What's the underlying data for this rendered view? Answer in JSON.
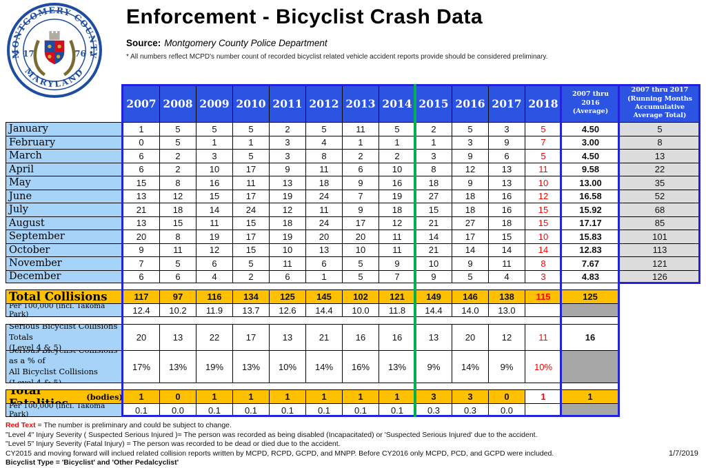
{
  "header": {
    "title": "Enforcement - Bicyclist Crash Data",
    "source_label": "Source:",
    "source_value": "Montgomery County Police Department",
    "note": "* All numbers reflect MCPD's number count of recorded bicyclist related vehicle accident reports provide should be considered preliminary.",
    "seal_top": "MONTGOMERY COUNTY",
    "seal_bottom": "MARYLAND",
    "seal_year_left": "17",
    "seal_year_right": "76"
  },
  "colors": {
    "header_blue": "#2B54E2",
    "border_blue": "#2222DD",
    "label_light_blue": "#A6D3F7",
    "gold": "#FFC000",
    "blocked_gray": "#A6A6A6",
    "running_gray": "#DCDCDC",
    "divider_green": "#00B050",
    "preliminary_red": "#FF0000"
  },
  "table": {
    "year_columns": [
      "2007",
      "2008",
      "2009",
      "2010",
      "2011",
      "2012",
      "2013",
      "2014",
      "2015",
      "2016",
      "2017",
      "2018"
    ],
    "avg_column_label": "2007 thru 2016 (Average)",
    "running_column_label": "2007 thru 2017 (Running Months Accumulative Average Total)",
    "months": [
      {
        "label": "January",
        "values": [
          "1",
          "5",
          "5",
          "5",
          "2",
          "5",
          "11",
          "5",
          "2",
          "5",
          "3",
          "5"
        ],
        "avg": "4.50",
        "running": "5"
      },
      {
        "label": "February",
        "values": [
          "0",
          "5",
          "1",
          "1",
          "3",
          "4",
          "1",
          "1",
          "1",
          "3",
          "9",
          "7"
        ],
        "avg": "3.00",
        "running": "8"
      },
      {
        "label": "March",
        "values": [
          "6",
          "2",
          "3",
          "5",
          "3",
          "8",
          "2",
          "2",
          "3",
          "9",
          "6",
          "5"
        ],
        "avg": "4.50",
        "running": "13"
      },
      {
        "label": "April",
        "values": [
          "6",
          "2",
          "10",
          "17",
          "9",
          "11",
          "6",
          "10",
          "8",
          "12",
          "13",
          "11"
        ],
        "avg": "9.58",
        "running": "22"
      },
      {
        "label": "May",
        "values": [
          "15",
          "8",
          "16",
          "11",
          "13",
          "18",
          "9",
          "16",
          "18",
          "9",
          "13",
          "10"
        ],
        "avg": "13.00",
        "running": "35"
      },
      {
        "label": "June",
        "values": [
          "13",
          "12",
          "15",
          "17",
          "19",
          "24",
          "7",
          "19",
          "27",
          "18",
          "16",
          "12"
        ],
        "avg": "16.58",
        "running": "52"
      },
      {
        "label": "July",
        "values": [
          "21",
          "18",
          "14",
          "24",
          "12",
          "11",
          "9",
          "18",
          "15",
          "18",
          "16",
          "15"
        ],
        "avg": "15.92",
        "running": "68"
      },
      {
        "label": "August",
        "values": [
          "13",
          "15",
          "11",
          "15",
          "18",
          "24",
          "17",
          "12",
          "21",
          "27",
          "18",
          "15"
        ],
        "avg": "17.17",
        "running": "85"
      },
      {
        "label": "September",
        "values": [
          "20",
          "8",
          "19",
          "17",
          "19",
          "20",
          "20",
          "11",
          "14",
          "17",
          "15",
          "10"
        ],
        "avg": "15.83",
        "running": "101"
      },
      {
        "label": "October",
        "values": [
          "9",
          "11",
          "12",
          "15",
          "10",
          "13",
          "10",
          "11",
          "21",
          "14",
          "14",
          "14"
        ],
        "avg": "12.83",
        "running": "113"
      },
      {
        "label": "November",
        "values": [
          "7",
          "5",
          "6",
          "5",
          "11",
          "6",
          "5",
          "9",
          "10",
          "9",
          "11",
          "8"
        ],
        "avg": "7.67",
        "running": "121"
      },
      {
        "label": "December",
        "values": [
          "6",
          "6",
          "4",
          "2",
          "6",
          "1",
          "5",
          "7",
          "9",
          "5",
          "4",
          "3"
        ],
        "avg": "4.83",
        "running": "126"
      }
    ],
    "summary": [
      {
        "kind": "gold",
        "label": "Total Collisions",
        "values": [
          "117",
          "97",
          "116",
          "134",
          "125",
          "145",
          "102",
          "121",
          "149",
          "146",
          "138",
          "115"
        ],
        "avg": "125"
      },
      {
        "kind": "per100k",
        "label": "Per 100,000 (incl. Takoma Park)",
        "values": [
          "12.4",
          "10.2",
          "11.9",
          "13.7",
          "12.6",
          "14.4",
          "10.0",
          "11.8",
          "14.4",
          "14.0",
          "13.0",
          ""
        ],
        "avg": ""
      },
      {
        "kind": "serious",
        "label_lines": [
          "Serious Bicyclist Collisions Totals",
          "(Level 4 & 5)"
        ],
        "values": [
          "20",
          "13",
          "22",
          "17",
          "13",
          "21",
          "16",
          "16",
          "13",
          "20",
          "12",
          "11"
        ],
        "avg": "16"
      },
      {
        "kind": "serious",
        "label_lines": [
          "Serious Bicyclist Collisions as a % of",
          "All Bicyclist Collisions (Level 4 & 5)"
        ],
        "values": [
          "17%",
          "13%",
          "19%",
          "13%",
          "10%",
          "14%",
          "16%",
          "13%",
          "9%",
          "14%",
          "9%",
          "10%"
        ],
        "avg": ""
      },
      {
        "kind": "gold",
        "label": "Total Fatalities",
        "label_suffix": "(bodies)",
        "y2018_white": true,
        "values": [
          "1",
          "0",
          "1",
          "1",
          "1",
          "1",
          "1",
          "1",
          "3",
          "3",
          "0",
          "1"
        ],
        "avg": "1"
      },
      {
        "kind": "per100k",
        "label": "Per 100,000 (incl. Takoma Park)",
        "values": [
          "0.1",
          "0.0",
          "0.1",
          "0.1",
          "0.1",
          "0.1",
          "0.1",
          "0.1",
          "0.3",
          "0.3",
          "0.0",
          ""
        ],
        "avg": ""
      }
    ]
  },
  "footnotes": {
    "red_label": "Red Text",
    "red_rest": " = The number is preliminary and could be subject to change.",
    "level4": "\"Level 4\" Injury Severity ( Suspected Serious Injured )= The person was recorded as being disabled (Incapacitated) or 'Suspected Serious Injured' due to the accident.",
    "level5": "\"Level 5\" Injury Severity (Fatal Injury) = The person was recorded to be dead or died due to the accident.",
    "cy2015": "CY2015 and moving forward will inclued related collision reports written by MCPD, RCPD, GCPD, and MNPP. Before CY2016 only MCPD, PCD, and GCPD were included.",
    "bicyclist_type": "Bicyclist Type = 'Bicyclist' and 'Other Pedalcyclist'"
  },
  "date": "1/7/2019"
}
